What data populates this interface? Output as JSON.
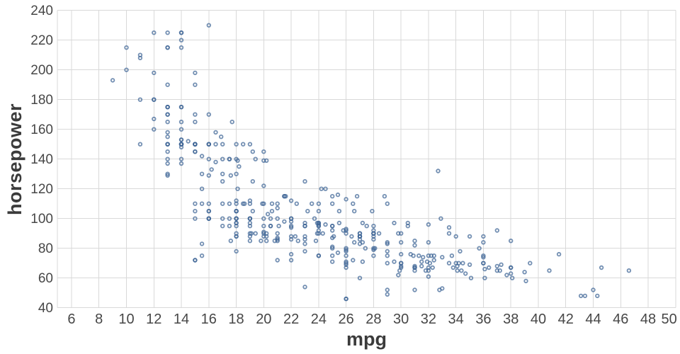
{
  "chart_data": {
    "type": "scatter",
    "title": "",
    "xlabel": "mpg",
    "ylabel": "horsepower",
    "x_ticks": [
      6,
      8,
      10,
      12,
      14,
      16,
      18,
      20,
      22,
      24,
      26,
      28,
      30,
      32,
      34,
      36,
      38,
      40,
      42,
      44,
      46,
      48,
      50
    ],
    "y_ticks": [
      40,
      60,
      80,
      100,
      120,
      140,
      160,
      180,
      200,
      220,
      240
    ],
    "x_domain": [
      4.97,
      50.01
    ],
    "y_domain": [
      40,
      240
    ],
    "grid": true,
    "legend": false,
    "marker": "open-circle",
    "points": [
      [
        18,
        130
      ],
      [
        15,
        165
      ],
      [
        18,
        150
      ],
      [
        16,
        150
      ],
      [
        17,
        140
      ],
      [
        15,
        198
      ],
      [
        14,
        220
      ],
      [
        14,
        215
      ],
      [
        14,
        225
      ],
      [
        15,
        190
      ],
      [
        15,
        170
      ],
      [
        14,
        160
      ],
      [
        15,
        150
      ],
      [
        14,
        225
      ],
      [
        24,
        95
      ],
      [
        22,
        95
      ],
      [
        18,
        97
      ],
      [
        21,
        85
      ],
      [
        27,
        88
      ],
      [
        26,
        46
      ],
      [
        25,
        87
      ],
      [
        24,
        90
      ],
      [
        25,
        95
      ],
      [
        26,
        113
      ],
      [
        21,
        90
      ],
      [
        10,
        215
      ],
      [
        10,
        200
      ],
      [
        11,
        210
      ],
      [
        9,
        193
      ],
      [
        27,
        88
      ],
      [
        28,
        90
      ],
      [
        25,
        95
      ],
      [
        19,
        100
      ],
      [
        16,
        105
      ],
      [
        17,
        100
      ],
      [
        19,
        88
      ],
      [
        18,
        100
      ],
      [
        14,
        165
      ],
      [
        14,
        175
      ],
      [
        14,
        153
      ],
      [
        14,
        150
      ],
      [
        12,
        180
      ],
      [
        13,
        170
      ],
      [
        13,
        175
      ],
      [
        18,
        110
      ],
      [
        22,
        72
      ],
      [
        19,
        100
      ],
      [
        18,
        88
      ],
      [
        23,
        86
      ],
      [
        28,
        90
      ],
      [
        30,
        70
      ],
      [
        30,
        76
      ],
      [
        31,
        65
      ],
      [
        35,
        69
      ],
      [
        27,
        60
      ],
      [
        26,
        70
      ],
      [
        24,
        95
      ],
      [
        25,
        80
      ],
      [
        23,
        54
      ],
      [
        20,
        90
      ],
      [
        21,
        86
      ],
      [
        13,
        165
      ],
      [
        14,
        175
      ],
      [
        15,
        150
      ],
      [
        14,
        153
      ],
      [
        17,
        150
      ],
      [
        11,
        208
      ],
      [
        13,
        155
      ],
      [
        12,
        160
      ],
      [
        13,
        190
      ],
      [
        19,
        97
      ],
      [
        15,
        150
      ],
      [
        13,
        130
      ],
      [
        13,
        140
      ],
      [
        14,
        150
      ],
      [
        18,
        112
      ],
      [
        22,
        76
      ],
      [
        21,
        87
      ],
      [
        26,
        69
      ],
      [
        22,
        86
      ],
      [
        28,
        92
      ],
      [
        23,
        97
      ],
      [
        28,
        80
      ],
      [
        27,
        88
      ],
      [
        13,
        175
      ],
      [
        14,
        150
      ],
      [
        13,
        145
      ],
      [
        14,
        137
      ],
      [
        15,
        150
      ],
      [
        12,
        198
      ],
      [
        13,
        150
      ],
      [
        13,
        158
      ],
      [
        14,
        150
      ],
      [
        13,
        215
      ],
      [
        12,
        225
      ],
      [
        13,
        175
      ],
      [
        18,
        105
      ],
      [
        16,
        100
      ],
      [
        18,
        100
      ],
      [
        18,
        88
      ],
      [
        23,
        95
      ],
      [
        26,
        46
      ],
      [
        11,
        150
      ],
      [
        12,
        167
      ],
      [
        13,
        170
      ],
      [
        12,
        180
      ],
      [
        18,
        100
      ],
      [
        20,
        88
      ],
      [
        21,
        72
      ],
      [
        22,
        94
      ],
      [
        18,
        90
      ],
      [
        19,
        85
      ],
      [
        21,
        107
      ],
      [
        26,
        90
      ],
      [
        15,
        145
      ],
      [
        16,
        230
      ],
      [
        29,
        49
      ],
      [
        24,
        75
      ],
      [
        20,
        91
      ],
      [
        19,
        112
      ],
      [
        15,
        150
      ],
      [
        24,
        110
      ],
      [
        20,
        122
      ],
      [
        11,
        180
      ],
      [
        20,
        95
      ],
      [
        21,
        100
      ],
      [
        19,
        100
      ],
      [
        15,
        100
      ],
      [
        31,
        67
      ],
      [
        26,
        80
      ],
      [
        32,
        65
      ],
      [
        25,
        75
      ],
      [
        16,
        100
      ],
      [
        16,
        110
      ],
      [
        18,
        105
      ],
      [
        16,
        140
      ],
      [
        13,
        150
      ],
      [
        14,
        150
      ],
      [
        14,
        140
      ],
      [
        14,
        150
      ],
      [
        29,
        83
      ],
      [
        26,
        67
      ],
      [
        26,
        78
      ],
      [
        31,
        52
      ],
      [
        32,
        61
      ],
      [
        28,
        75
      ],
      [
        24,
        75
      ],
      [
        26,
        75
      ],
      [
        24,
        97
      ],
      [
        26,
        93
      ],
      [
        31,
        67
      ],
      [
        19,
        95
      ],
      [
        18,
        105
      ],
      [
        15,
        72
      ],
      [
        15,
        72
      ],
      [
        16,
        170
      ],
      [
        15,
        145
      ],
      [
        16,
        150
      ],
      [
        14,
        148
      ],
      [
        17,
        110
      ],
      [
        16,
        105
      ],
      [
        15,
        110
      ],
      [
        18,
        95
      ],
      [
        21,
        110
      ],
      [
        20,
        110
      ],
      [
        13,
        129
      ],
      [
        29,
        75
      ],
      [
        23,
        83
      ],
      [
        20,
        100
      ],
      [
        23,
        78
      ],
      [
        24,
        96
      ],
      [
        25,
        71
      ],
      [
        24,
        97
      ],
      [
        18,
        97
      ],
      [
        29,
        70
      ],
      [
        19,
        90
      ],
      [
        23,
        95
      ],
      [
        23,
        88
      ],
      [
        22,
        98
      ],
      [
        25,
        115
      ],
      [
        33,
        53
      ],
      [
        28,
        86
      ],
      [
        25,
        81
      ],
      [
        25,
        92
      ],
      [
        26,
        79
      ],
      [
        27,
        83
      ],
      [
        17.5,
        140
      ],
      [
        16,
        150
      ],
      [
        15.5,
        120
      ],
      [
        14.5,
        152
      ],
      [
        22,
        100
      ],
      [
        22,
        100
      ],
      [
        24,
        105
      ],
      [
        22.5,
        85
      ],
      [
        29,
        110
      ],
      [
        24.5,
        120
      ],
      [
        26.5,
        72
      ],
      [
        29,
        52
      ],
      [
        20,
        139
      ],
      [
        18,
        140
      ],
      [
        18,
        78
      ],
      [
        17.5,
        95
      ],
      [
        29.5,
        97
      ],
      [
        32,
        75
      ],
      [
        28,
        95
      ],
      [
        26.5,
        110
      ],
      [
        20,
        145
      ],
      [
        13,
        137
      ],
      [
        19,
        150
      ],
      [
        15.5,
        130
      ],
      [
        16.5,
        150
      ],
      [
        16.5,
        158
      ],
      [
        13,
        150
      ],
      [
        13,
        215
      ],
      [
        13,
        225
      ],
      [
        31.5,
        71
      ],
      [
        30,
        70
      ],
      [
        36,
        70
      ],
      [
        25.5,
        105
      ],
      [
        33.5,
        94
      ],
      [
        17.5,
        100
      ],
      [
        17,
        95
      ],
      [
        15.5,
        110
      ],
      [
        15,
        105
      ],
      [
        17.5,
        110
      ],
      [
        20.5,
        95
      ],
      [
        19,
        110
      ],
      [
        18.5,
        110
      ],
      [
        16,
        129
      ],
      [
        15.5,
        75
      ],
      [
        15.5,
        83
      ],
      [
        16,
        100
      ],
      [
        29,
        78
      ],
      [
        24.5,
        96
      ],
      [
        26,
        71
      ],
      [
        25.5,
        97
      ],
      [
        30.5,
        97
      ],
      [
        33.5,
        70
      ],
      [
        30,
        90
      ],
      [
        30.5,
        95
      ],
      [
        22,
        88
      ],
      [
        21.5,
        98
      ],
      [
        21.5,
        115
      ],
      [
        43.1,
        48
      ],
      [
        36.1,
        66
      ],
      [
        32.8,
        52
      ],
      [
        39.4,
        70
      ],
      [
        36.1,
        60
      ],
      [
        19.9,
        110
      ],
      [
        19.4,
        140
      ],
      [
        20.2,
        139
      ],
      [
        19.2,
        105
      ],
      [
        20.5,
        95
      ],
      [
        20.2,
        85
      ],
      [
        25.1,
        88
      ],
      [
        20.5,
        100
      ],
      [
        19.4,
        90
      ],
      [
        20.6,
        105
      ],
      [
        20.8,
        85
      ],
      [
        18.6,
        110
      ],
      [
        18.1,
        120
      ],
      [
        19.2,
        145
      ],
      [
        17.7,
        165
      ],
      [
        18.1,
        139
      ],
      [
        17.5,
        140
      ],
      [
        30,
        68
      ],
      [
        27.5,
        95
      ],
      [
        27.2,
        97
      ],
      [
        30.9,
        75
      ],
      [
        21.1,
        95
      ],
      [
        23.2,
        105
      ],
      [
        23.8,
        85
      ],
      [
        23.9,
        97
      ],
      [
        20.3,
        103
      ],
      [
        17,
        125
      ],
      [
        21.6,
        115
      ],
      [
        16.2,
        133
      ],
      [
        31.5,
        68
      ],
      [
        29.5,
        71
      ],
      [
        21.5,
        115
      ],
      [
        19.8,
        85
      ],
      [
        22.3,
        88
      ],
      [
        20.2,
        90
      ],
      [
        20.6,
        110
      ],
      [
        17,
        130
      ],
      [
        17.6,
        129
      ],
      [
        16.5,
        138
      ],
      [
        18.2,
        135
      ],
      [
        16.9,
        155
      ],
      [
        15.5,
        142
      ],
      [
        19.2,
        125
      ],
      [
        18.5,
        150
      ],
      [
        31.9,
        71
      ],
      [
        34.1,
        65
      ],
      [
        35.7,
        80
      ],
      [
        27.4,
        80
      ],
      [
        25.4,
        77
      ],
      [
        23,
        125
      ],
      [
        27.2,
        71
      ],
      [
        23.9,
        90
      ],
      [
        34.2,
        70
      ],
      [
        34.5,
        70
      ],
      [
        31.8,
        65
      ],
      [
        37.3,
        69
      ],
      [
        28.4,
        90
      ],
      [
        28.8,
        115
      ],
      [
        26.8,
        115
      ],
      [
        33.5,
        90
      ],
      [
        41.5,
        76
      ],
      [
        38.1,
        60
      ],
      [
        32.1,
        70
      ],
      [
        37.2,
        65
      ],
      [
        28,
        90
      ],
      [
        26.4,
        88
      ],
      [
        24.3,
        90
      ],
      [
        19.1,
        90
      ],
      [
        34.3,
        78
      ],
      [
        29.8,
        90
      ],
      [
        31.3,
        75
      ],
      [
        37,
        92
      ],
      [
        32.2,
        75
      ],
      [
        46.6,
        65
      ],
      [
        27.9,
        105
      ],
      [
        40.8,
        65
      ],
      [
        44.3,
        48
      ],
      [
        43.4,
        48
      ],
      [
        36.4,
        67
      ],
      [
        30,
        67
      ],
      [
        44.6,
        67
      ],
      [
        33.8,
        67
      ],
      [
        29.8,
        62
      ],
      [
        32.7,
        132
      ],
      [
        23.7,
        100
      ],
      [
        35,
        88
      ],
      [
        32.4,
        72
      ],
      [
        27.2,
        84
      ],
      [
        26.6,
        84
      ],
      [
        25.8,
        92
      ],
      [
        23.5,
        110
      ],
      [
        30,
        84
      ],
      [
        39.1,
        58
      ],
      [
        39,
        64
      ],
      [
        35.1,
        60
      ],
      [
        32.3,
        67
      ],
      [
        37,
        65
      ],
      [
        37.7,
        62
      ],
      [
        34.1,
        68
      ],
      [
        34.7,
        63
      ],
      [
        34.4,
        65
      ],
      [
        29.9,
        65
      ],
      [
        33,
        74
      ],
      [
        33.7,
        75
      ],
      [
        32.4,
        75
      ],
      [
        32.9,
        100
      ],
      [
        31.6,
        74
      ],
      [
        28.1,
        80
      ],
      [
        30.7,
        76
      ],
      [
        25.4,
        116
      ],
      [
        24.2,
        120
      ],
      [
        22.4,
        110
      ],
      [
        26.6,
        105
      ],
      [
        20.2,
        88
      ],
      [
        17.6,
        85
      ],
      [
        28,
        88
      ],
      [
        27,
        88
      ],
      [
        34,
        88
      ],
      [
        31,
        85
      ],
      [
        29,
        84
      ],
      [
        27,
        90
      ],
      [
        24,
        92
      ],
      [
        36,
        74
      ],
      [
        37,
        68
      ],
      [
        31,
        68
      ],
      [
        38,
        63
      ],
      [
        36,
        70
      ],
      [
        36,
        88
      ],
      [
        36,
        75
      ],
      [
        34,
        70
      ],
      [
        38,
        67
      ],
      [
        32,
        67
      ],
      [
        38,
        67
      ],
      [
        25,
        110
      ],
      [
        38,
        85
      ],
      [
        26,
        92
      ],
      [
        22,
        112
      ],
      [
        32,
        96
      ],
      [
        36,
        84
      ],
      [
        27,
        90
      ],
      [
        27,
        86
      ],
      [
        44,
        52
      ],
      [
        32,
        84
      ],
      [
        28,
        79
      ],
      [
        31,
        82
      ]
    ]
  },
  "style": {
    "point_color": "#3e6595",
    "point_opacity": 0.72,
    "grid_color": "#d9d9d9",
    "tick_label_color": "#474747",
    "axis_title_color": "#3b3b3b",
    "background": "#ffffff"
  }
}
